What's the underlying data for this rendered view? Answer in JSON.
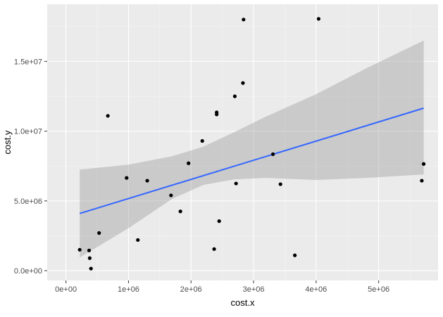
{
  "chart_data": {
    "type": "scatter",
    "xlabel": "cost.x",
    "ylabel": "cost.y",
    "xlim": [
      -300000,
      5950000
    ],
    "ylim": [
      -700000,
      19100000
    ],
    "x_ticks": [
      {
        "value": 0,
        "label": "0e+00"
      },
      {
        "value": 1000000,
        "label": "1e+06"
      },
      {
        "value": 2000000,
        "label": "2e+06"
      },
      {
        "value": 3000000,
        "label": "3e+06"
      },
      {
        "value": 4000000,
        "label": "4e+06"
      },
      {
        "value": 5000000,
        "label": "5e+06"
      }
    ],
    "y_ticks": [
      {
        "value": 0,
        "label": "0.0e+00"
      },
      {
        "value": 5000000,
        "label": "5.0e+06"
      },
      {
        "value": 10000000,
        "label": "1.0e+07"
      },
      {
        "value": 15000000,
        "label": "1.5e+07"
      }
    ],
    "grid": true,
    "points": [
      {
        "x": 220000,
        "y": 1500000
      },
      {
        "x": 370000,
        "y": 1450000
      },
      {
        "x": 380000,
        "y": 900000
      },
      {
        "x": 400000,
        "y": 150000
      },
      {
        "x": 530000,
        "y": 2700000
      },
      {
        "x": 670000,
        "y": 11100000
      },
      {
        "x": 970000,
        "y": 6650000
      },
      {
        "x": 1150000,
        "y": 2200000
      },
      {
        "x": 1300000,
        "y": 6450000
      },
      {
        "x": 1680000,
        "y": 5400000
      },
      {
        "x": 1830000,
        "y": 4250000
      },
      {
        "x": 1960000,
        "y": 7700000
      },
      {
        "x": 2180000,
        "y": 9300000
      },
      {
        "x": 2370000,
        "y": 1550000
      },
      {
        "x": 2410000,
        "y": 11200000
      },
      {
        "x": 2410000,
        "y": 11350000
      },
      {
        "x": 2450000,
        "y": 3550000
      },
      {
        "x": 2700000,
        "y": 12500000
      },
      {
        "x": 2720000,
        "y": 6250000
      },
      {
        "x": 2830000,
        "y": 13450000
      },
      {
        "x": 2840000,
        "y": 18000000
      },
      {
        "x": 3310000,
        "y": 8350000
      },
      {
        "x": 3430000,
        "y": 6200000
      },
      {
        "x": 3660000,
        "y": 1100000
      },
      {
        "x": 4040000,
        "y": 18050000
      },
      {
        "x": 5690000,
        "y": 6450000
      },
      {
        "x": 5720000,
        "y": 7650000
      }
    ],
    "fit_line": {
      "x": [
        220000,
        5720000
      ],
      "y": [
        4100000,
        11650000
      ]
    },
    "confidence_band": [
      {
        "x": 220000,
        "lower": 950000,
        "upper": 7250000
      },
      {
        "x": 1000000,
        "lower": 3050000,
        "upper": 7600000
      },
      {
        "x": 1700000,
        "lower": 5150000,
        "upper": 8200000
      },
      {
        "x": 2200000,
        "lower": 6150000,
        "upper": 8900000
      },
      {
        "x": 2700000,
        "lower": 6550000,
        "upper": 9950000
      },
      {
        "x": 3200000,
        "lower": 6650000,
        "upper": 11050000
      },
      {
        "x": 4000000,
        "lower": 6500000,
        "upper": 12650000
      },
      {
        "x": 4800000,
        "lower": 6650000,
        "upper": 14500000
      },
      {
        "x": 5720000,
        "lower": 6900000,
        "upper": 16500000
      }
    ],
    "colors": {
      "panel_background": "#ebebeb",
      "grid_major": "#ffffff",
      "grid_minor": "#f5f5f5",
      "points": "#000000",
      "fit_line": "#3366ff",
      "band": "#999999",
      "tick_text": "#4d4d4d",
      "axis_title": "#000000"
    }
  }
}
